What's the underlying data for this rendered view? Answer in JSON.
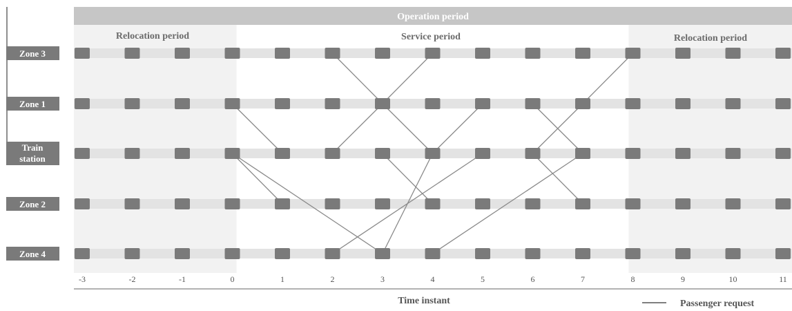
{
  "diagram": {
    "operation_period_label": "Operation period",
    "relocation_left_label": "Relocation period",
    "service_label": "Service period",
    "relocation_right_label": "Relocation period",
    "zones": [
      {
        "id": "zone3",
        "lines": [
          "Zone 3"
        ]
      },
      {
        "id": "zone1",
        "lines": [
          "Zone 1"
        ]
      },
      {
        "id": "train-station",
        "lines": [
          "Train",
          "station"
        ]
      },
      {
        "id": "zone2",
        "lines": [
          "Zone 2"
        ]
      },
      {
        "id": "zone4",
        "lines": [
          "Zone 4"
        ]
      }
    ],
    "time_instants": [
      "-3",
      "-2",
      "-1",
      "0",
      "1",
      "2",
      "3",
      "4",
      "5",
      "6",
      "7",
      "8",
      "9",
      "10",
      "11"
    ],
    "relocation_left_range": [
      -3,
      0
    ],
    "relocation_right_range": [
      8,
      11
    ],
    "axis_label": "Time instant",
    "legend_label": "Passenger request",
    "requests": [
      {
        "from": "zone3",
        "t0": 2,
        "to": "zone1",
        "t1": 3
      },
      {
        "from": "zone3",
        "t0": 4,
        "to": "zone1",
        "t1": 3
      },
      {
        "from": "zone1",
        "t0": 0,
        "to": "train-station",
        "t1": 1
      },
      {
        "from": "zone1",
        "t0": 3,
        "to": "train-station",
        "t1": 2
      },
      {
        "from": "zone1",
        "t0": 3,
        "to": "train-station",
        "t1": 4
      },
      {
        "from": "zone1",
        "t0": 5,
        "to": "train-station",
        "t1": 4
      },
      {
        "from": "zone1",
        "t0": 6,
        "to": "train-station",
        "t1": 7
      },
      {
        "from": "zone1",
        "t0": 7,
        "to": "train-station",
        "t1": 6
      },
      {
        "from": "zone1",
        "t0": 7,
        "to": "zone3",
        "t1": 8
      },
      {
        "from": "train-station",
        "t0": 0,
        "to": "zone2",
        "t1": 1
      },
      {
        "from": "train-station",
        "t0": 0,
        "to": "zone4",
        "t1": 3
      },
      {
        "from": "train-station",
        "t0": 3,
        "to": "zone2",
        "t1": 4
      },
      {
        "from": "train-station",
        "t0": 4,
        "to": "zone4",
        "t1": 3
      },
      {
        "from": "train-station",
        "t0": 5,
        "to": "zone4",
        "t1": 2
      },
      {
        "from": "train-station",
        "t0": 6,
        "to": "zone2",
        "t1": 7
      },
      {
        "from": "train-station",
        "t0": 7,
        "to": "zone4",
        "t1": 4
      }
    ],
    "colors": {
      "operation_bar": "#c6c6c6",
      "relocation_bg": "#f2f2f2",
      "track": "#e3e3e3",
      "node": "#7a7a7a",
      "zone_label_bg": "#7a7a7a",
      "request_line": "#8a8a8a",
      "axis_line": "#999999"
    }
  }
}
